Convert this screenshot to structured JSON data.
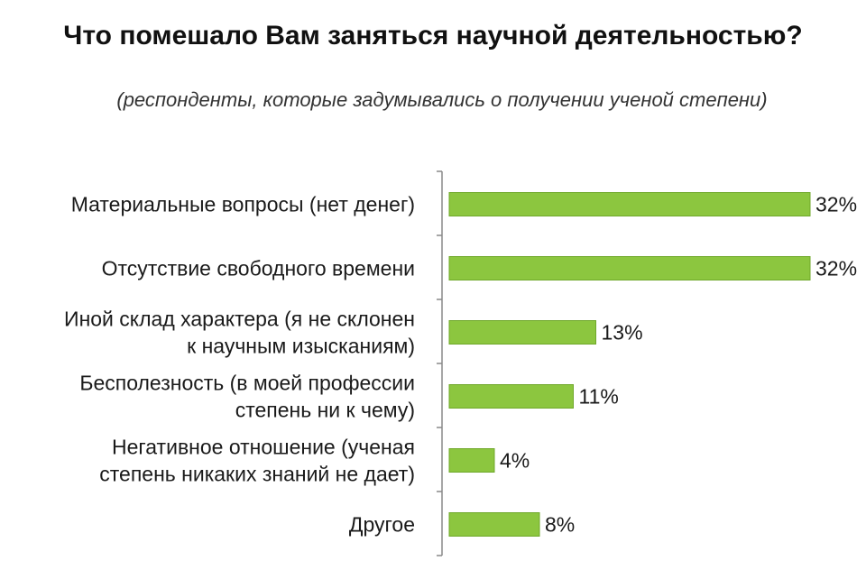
{
  "chart_data": {
    "type": "bar",
    "orientation": "horizontal",
    "title": "Что помешало Вам заняться научной деятельностью?",
    "subtitle": "(респонденты, которые задумывались о получении ученой степени)",
    "categories": [
      [
        "Материальные  вопросы (нет денег)"
      ],
      [
        "Отсутствие  свободного  времени"
      ],
      [
        "Иной  склад  характера  (я  не  склонен",
        "к  научным  изысканиям)"
      ],
      [
        "Бесполезность  (в  моей  профессии",
        "степень  ни  к  чему)"
      ],
      [
        "Негативное  отношение  (ученая",
        "степень  никаких  знаний  не  дает)"
      ],
      [
        "Другое"
      ]
    ],
    "values": [
      32,
      32,
      13,
      11,
      4,
      8
    ],
    "value_labels": [
      "32%",
      "32%",
      "13%",
      "11%",
      "4%",
      "8%"
    ],
    "xlim": [
      0,
      35
    ],
    "grid": false,
    "bar_color": "#8cc63f",
    "bar_edge_color": "#6fa82a"
  }
}
